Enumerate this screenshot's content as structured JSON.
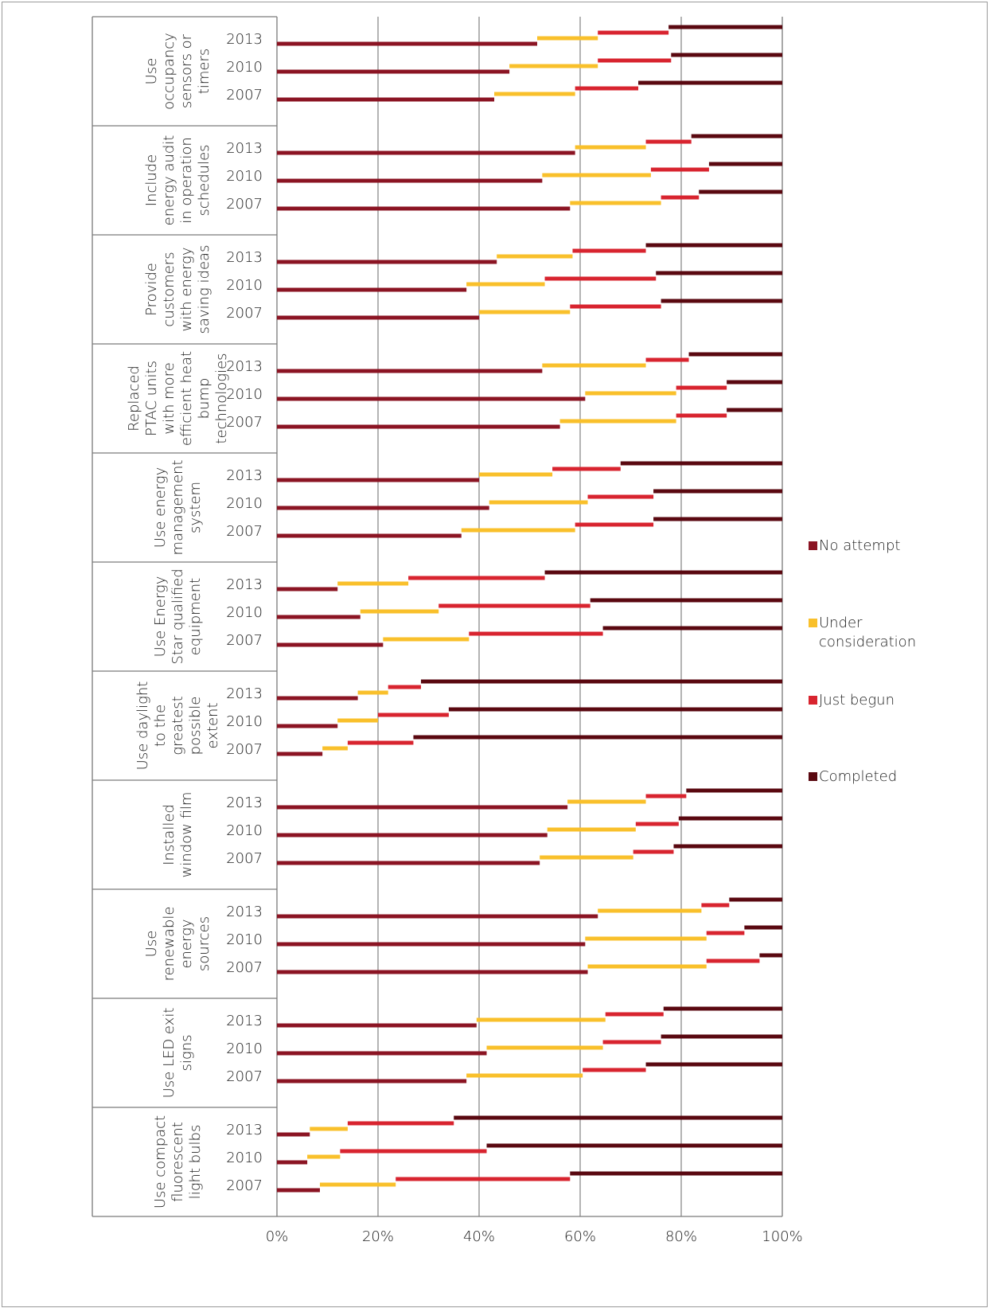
{
  "chart_data": {
    "type": "bar",
    "orientation": "horizontal",
    "stacked": true,
    "percent": true,
    "xlim": [
      0,
      100
    ],
    "x_ticks": [
      "0%",
      "20%",
      "40%",
      "60%",
      "80%",
      "100%"
    ],
    "grid": "vertical",
    "legend_position": "right",
    "series_names": [
      "No attempt",
      "Under consideration",
      "Just begun",
      "Completed"
    ],
    "series_colors": [
      "#8b1423",
      "#f9c02b",
      "#d8242f",
      "#5a0810"
    ],
    "categories": [
      {
        "label_lines": [
          "Use",
          "occupancy",
          "sensors or",
          "timers"
        ],
        "rows": [
          {
            "year": "2013",
            "values": [
              51.5,
              12,
              14,
              22.5
            ]
          },
          {
            "year": "2010",
            "values": [
              46,
              17.5,
              14.5,
              22
            ]
          },
          {
            "year": "2007",
            "values": [
              43,
              16,
              12.5,
              28.5
            ]
          }
        ]
      },
      {
        "label_lines": [
          "Include",
          "energy audit",
          "in operation",
          "schedules"
        ],
        "rows": [
          {
            "year": "2013",
            "values": [
              59,
              14,
              9,
              18
            ]
          },
          {
            "year": "2010",
            "values": [
              52.5,
              21.5,
              11.5,
              14.5
            ]
          },
          {
            "year": "2007",
            "values": [
              58,
              18,
              7.5,
              16.5
            ]
          }
        ]
      },
      {
        "label_lines": [
          "Provide",
          "customers",
          "with energy",
          "saving ideas"
        ],
        "rows": [
          {
            "year": "2013",
            "values": [
              43.5,
              15,
              14.5,
              27
            ]
          },
          {
            "year": "2010",
            "values": [
              37.5,
              15.5,
              22,
              25
            ]
          },
          {
            "year": "2007",
            "values": [
              40,
              18,
              18,
              24
            ]
          }
        ]
      },
      {
        "label_lines": [
          "Replaced",
          "PTAC units",
          "with more",
          "efficient heat",
          "bump",
          "technologies"
        ],
        "rows": [
          {
            "year": "2013",
            "values": [
              52.5,
              20.5,
              8.5,
              18.5
            ]
          },
          {
            "year": "2010",
            "values": [
              61,
              18,
              10,
              11
            ]
          },
          {
            "year": "2007",
            "values": [
              56,
              23,
              10,
              11
            ]
          }
        ]
      },
      {
        "label_lines": [
          "Use energy",
          "management",
          "system"
        ],
        "rows": [
          {
            "year": "2013",
            "values": [
              40,
              14.5,
              13.5,
              32
            ]
          },
          {
            "year": "2010",
            "values": [
              42,
              19.5,
              13,
              25.5
            ]
          },
          {
            "year": "2007",
            "values": [
              36.5,
              22.5,
              15.5,
              25.5
            ]
          }
        ]
      },
      {
        "label_lines": [
          "Use Energy",
          "Star qualified",
          "equipment"
        ],
        "rows": [
          {
            "year": "2013",
            "values": [
              12,
              14,
              27,
              47
            ]
          },
          {
            "year": "2010",
            "values": [
              16.5,
              15.5,
              30,
              38
            ]
          },
          {
            "year": "2007",
            "values": [
              21,
              17,
              26.5,
              35.5
            ]
          }
        ]
      },
      {
        "label_lines": [
          "Use daylight",
          "to the",
          "greatest",
          "possible",
          "extent"
        ],
        "rows": [
          {
            "year": "2013",
            "values": [
              16,
              6,
              6.5,
              71.5
            ]
          },
          {
            "year": "2010",
            "values": [
              12,
              8,
              14,
              66
            ]
          },
          {
            "year": "2007",
            "values": [
              9,
              5,
              13,
              73
            ]
          }
        ]
      },
      {
        "label_lines": [
          "Installed",
          "window film"
        ],
        "rows": [
          {
            "year": "2013",
            "values": [
              57.5,
              15.5,
              8,
              19
            ]
          },
          {
            "year": "2010",
            "values": [
              53.5,
              17.5,
              8.5,
              20.5
            ]
          },
          {
            "year": "2007",
            "values": [
              52,
              18.5,
              8,
              21.5
            ]
          }
        ]
      },
      {
        "label_lines": [
          "Use",
          "renewable",
          "energy",
          "sources"
        ],
        "rows": [
          {
            "year": "2013",
            "values": [
              63.5,
              20.5,
              5.5,
              10.5
            ]
          },
          {
            "year": "2010",
            "values": [
              61,
              24,
              7.5,
              7.5
            ]
          },
          {
            "year": "2007",
            "values": [
              61.5,
              23.5,
              10.5,
              4.5
            ]
          }
        ]
      },
      {
        "label_lines": [
          "Use LED exit",
          "signs"
        ],
        "rows": [
          {
            "year": "2013",
            "values": [
              39.5,
              25.5,
              11.5,
              23.5
            ]
          },
          {
            "year": "2010",
            "values": [
              41.5,
              23,
              11.5,
              24
            ]
          },
          {
            "year": "2007",
            "values": [
              37.5,
              23,
              12.5,
              27
            ]
          }
        ]
      },
      {
        "label_lines": [
          "Use compact",
          "fluorescent",
          "light bulbs"
        ],
        "rows": [
          {
            "year": "2013",
            "values": [
              6.5,
              7.5,
              21,
              65
            ]
          },
          {
            "year": "2010",
            "values": [
              6,
              6.5,
              29,
              58.5
            ]
          },
          {
            "year": "2007",
            "values": [
              8.5,
              15,
              34.5,
              42
            ]
          }
        ]
      }
    ]
  }
}
